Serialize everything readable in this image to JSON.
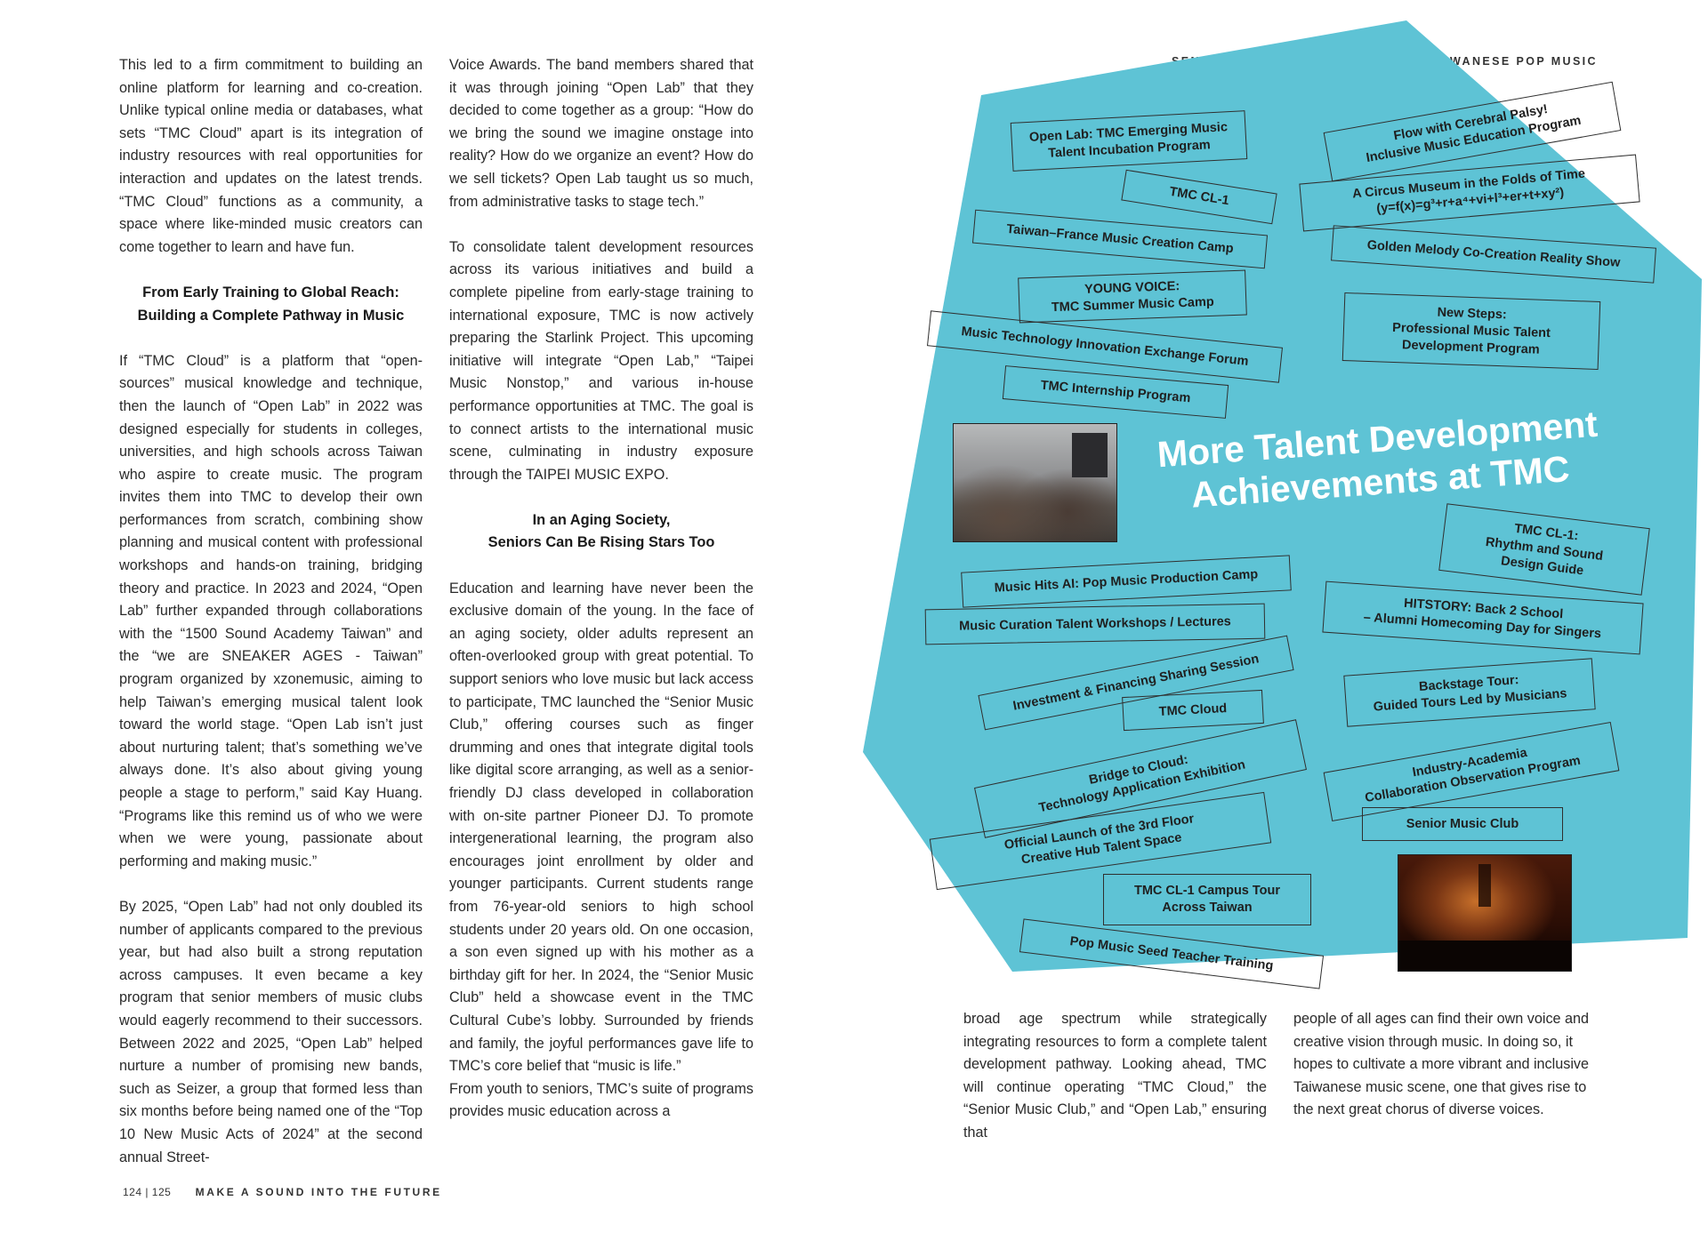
{
  "header": {
    "running_title": "SENSE & SOUND: FIVE WAYS INTO TAIWANESE POP MUSIC"
  },
  "footer": {
    "pages": "124 | 125",
    "title": "MAKE A SOUND INTO THE FUTURE"
  },
  "article": {
    "col1_p1": "This led to a firm commitment to building an online platform for learning and co-creation. Unlike typical online media or databases, what sets “TMC Cloud” apart is its integration of industry resources with real opportunities for interaction and updates on the latest trends. “TMC Cloud” functions as a community, a space where like-minded music creators can come together to learn and have fun.",
    "heading1_line1": "From Early Training to Global Reach:",
    "heading1_line2": "Building a Complete Pathway in Music",
    "col1_p2": "If “TMC Cloud” is a platform that “open-sources” musical knowledge and technique, then the launch of “Open Lab” in 2022 was designed especially for students in colleges, universities, and high schools across Taiwan who aspire to create music. The program invites them into TMC to develop their own performances from scratch, combining show planning and musical content with professional workshops and hands-on training, bridging theory and practice. In 2023 and 2024, “Open Lab” further expanded through collaborations with the “1500 Sound Academy Taiwan” and the “we are SNEAKER AGES - Taiwan” program organized by xzonemusic, aiming to help Taiwan’s emerging musical talent look toward the world stage. “Open Lab isn’t just about nurturing talent; that’s something we’ve always done. It’s also about giving young people a stage to perform,” said Kay Huang. “Programs like this remind us of who we were when we were young, passionate about performing and making music.”",
    "col1_p3": "By 2025, “Open Lab” had not only doubled its number of applicants compared to the previous year, but had also built a strong reputation across campuses. It even became a key program that senior members of music clubs would eagerly recommend to their successors. Between 2022 and 2025, “Open Lab” helped nurture a number of promising new bands, such as Seizer, a group that formed less than six months before being named one of the “Top 10 New Music Acts of 2024” at the second annual Street-",
    "col2_p1": "Voice Awards. The band members shared that it was through joining “Open Lab” that they decided to come together as a group: “How do we bring the sound we imagine onstage into reality? How do we organize an event? How do we sell tickets? Open Lab taught us so much, from administrative tasks to stage tech.”",
    "col2_p2": "To consolidate talent development resources across its various initiatives and build a complete pipeline from early-stage training to international exposure, TMC is now actively preparing the Starlink Project. This upcoming initiative will integrate “Open Lab,” “Taipei Music Nonstop,” and various in-house performance opportunities at TMC. The goal is to connect artists to the international music scene, culminating in industry exposure through the TAIPEI MUSIC EXPO.",
    "heading2_line1": "In an Aging Society,",
    "heading2_line2": "Seniors Can Be Rising Stars Too",
    "col2_p3": "Education and learning have never been the exclusive domain of the young. In the face of an aging society, older adults represent an often-overlooked group with great potential. To support seniors who love music but lack access to participate, TMC launched the “Senior Music Club,” offering courses such as finger drumming and ones that integrate digital tools like digital score arranging, as well as a senior-friendly DJ class developed in collaboration with on-site partner Pioneer DJ. To promote intergenerational learning, the program also encourages joint enrollment by older and younger participants. Current students range from 76-year-old seniors to high school students under 20 years old. On one occasion, a son even signed up with his mother as a birthday gift for her. In 2024, the “Senior Music Club” held a showcase event in the TMC Cultural Cube’s lobby. Surrounded by friends and family, the joyful performances gave life to TMC’s core belief that “music is life.”",
    "col2_p4": "From youth to seniors, TMC’s suite of programs provides music education across a",
    "col3_p1": "broad age spectrum while strategically integrating resources to form a complete talent development pathway. Looking ahead, TMC will continue operating “TMC Cloud,” the “Senior Music Club,” and “Open Lab,” ensuring that",
    "col4_p1": "people of all ages can find their own voice and creative vision through music. In doing so, it hopes to cultivate a more vibrant and inclusive Taiwanese music scene, one that gives rise to the next great chorus of diverse voices."
  },
  "infographic": {
    "title": "More Talent Development Achievements at TMC",
    "shape_color": "#5ec3d5",
    "programs": {
      "open_lab": "Open Lab: TMC Emerging Music\nTalent Incubation Program",
      "flow": "Flow with Cerebral Palsy!\nInclusive Music Education Program",
      "tmc_cl1": "TMC CL-1",
      "circus": "A Circus Museum in the Folds of Time\n(y=f(x)=g³+r+a⁴+vi+l³+er+t+xy²)",
      "taiwan_france": "Taiwan–France Music Creation Camp",
      "golden_melody": "Golden Melody Co-Creation Reality Show",
      "young_voice": "YOUNG VOICE:\nTMC Summer Music Camp",
      "new_steps": "New Steps:\nProfessional Music Talent\nDevelopment Program",
      "music_tech": "Music Technology Innovation Exchange Forum",
      "internship": "TMC Internship Program",
      "cl1_rhythm": "TMC CL-1:\nRhythm and Sound\nDesign Guide",
      "music_hits": "Music Hits AI: Pop Music Production Camp",
      "hitstory": "HITSTORY: Back 2 School\n– Alumni Homecoming Day for Singers",
      "curation": "Music Curation Talent Workshops / Lectures",
      "investment": "Investment & Financing Sharing Session",
      "backstage": "Backstage Tour:\nGuided Tours Led by Musicians",
      "tmc_cloud": "TMC Cloud",
      "bridge": "Bridge to Cloud:\nTechnology Application Exhibition",
      "industry": "Industry-Academia\nCollaboration Observation Program",
      "launch": "Official Launch of the 3rd Floor\nCreative Hub Talent Space",
      "senior_club": "Senior Music Club",
      "campus_tour": "TMC CL-1 Campus Tour\nAcross Taiwan",
      "seed_teacher": "Pop Music Seed Teacher Training"
    }
  }
}
